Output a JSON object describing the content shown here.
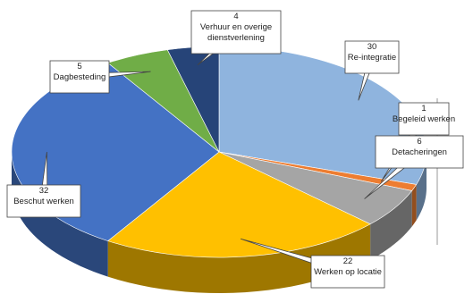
{
  "chart_data": {
    "type": "pie",
    "title": "",
    "style": "3d-exploded",
    "slices": [
      {
        "value": 30,
        "label": "Re-integratie",
        "color": "#8FB4DE"
      },
      {
        "value": 1,
        "label": "Begeleid werken",
        "color": "#ED7D31"
      },
      {
        "value": 6,
        "label": "Detacheringen",
        "color": "#A5A5A5"
      },
      {
        "value": 22,
        "label": "Werken op locatie",
        "color": "#FFC000"
      },
      {
        "value": 32,
        "label": "Beschut werken",
        "color": "#4472C4"
      },
      {
        "value": 5,
        "label": "Dagbesteding",
        "color": "#70AD47"
      },
      {
        "value": 4,
        "label": "Verhuur en overige dienstverlening",
        "color": "#264478"
      }
    ]
  }
}
